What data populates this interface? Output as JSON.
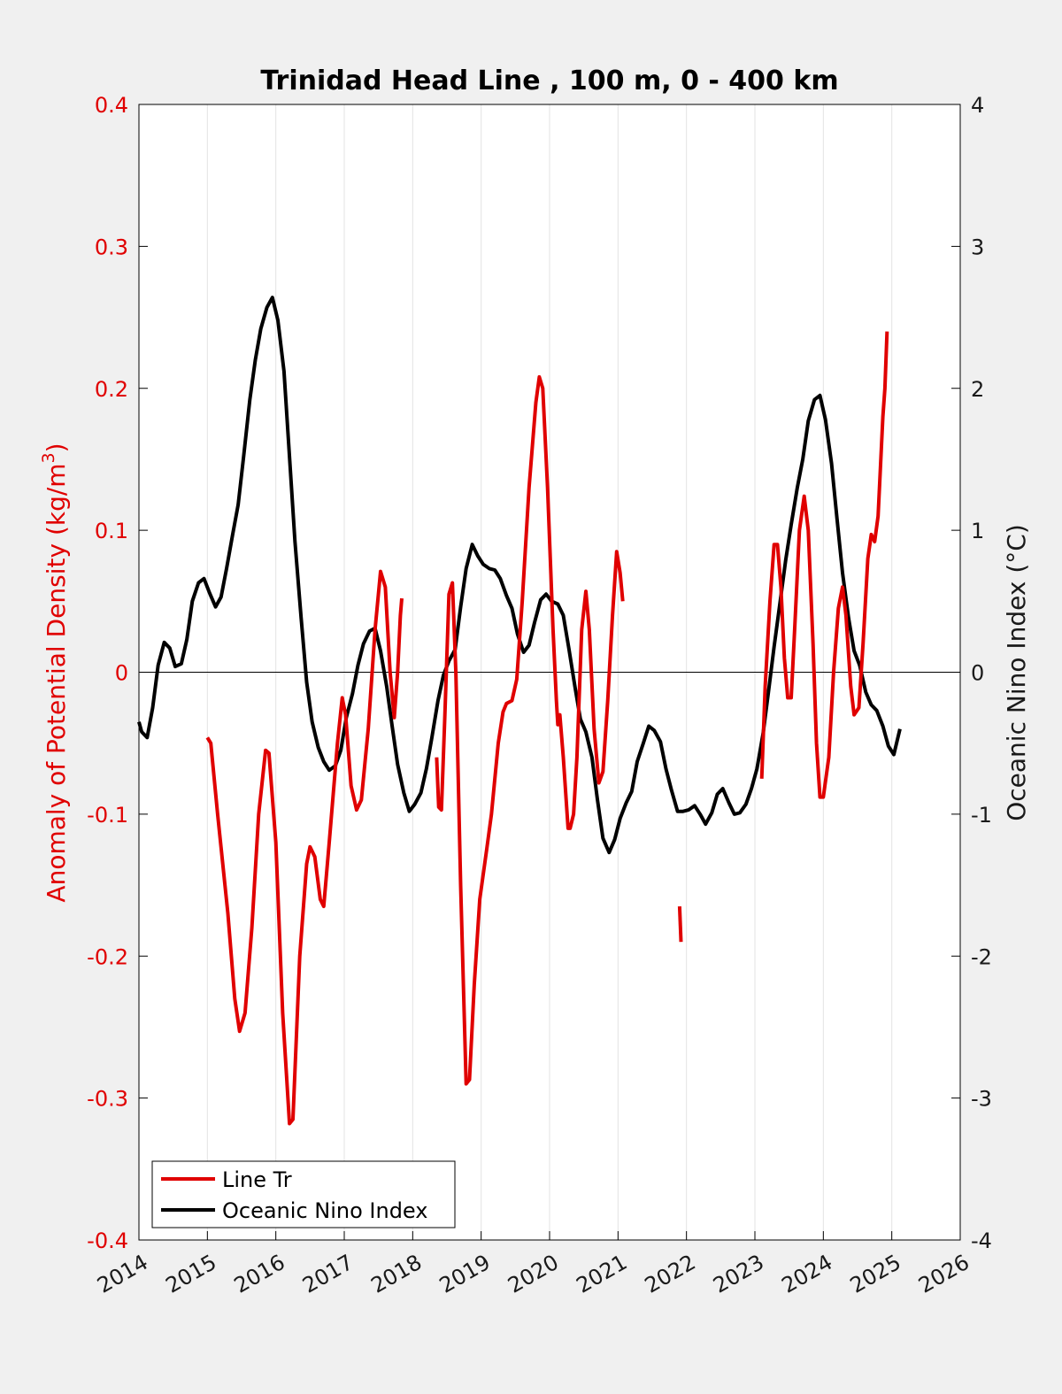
{
  "chart_data": {
    "type": "line",
    "title": "Trinidad Head Line , 100 m, 0 - 400 km",
    "ylabel_left": "Anomaly of Potential Density (kg/m",
    "ylabel_left_sup": "3",
    "ylabel_left_end": ")",
    "ylabel_right": "Oceanic Nino Index (°C)",
    "xlim": [
      2014,
      2026
    ],
    "ylim_left": [
      -0.4,
      0.4
    ],
    "ylim_right": [
      -4,
      4
    ],
    "x_ticks": [
      2014,
      2015,
      2016,
      2017,
      2018,
      2019,
      2020,
      2021,
      2022,
      2023,
      2024,
      2025,
      2026
    ],
    "y_ticks_left": [
      "-0.4",
      "-0.3",
      "-0.2",
      "-0.1",
      "0",
      "0.1",
      "0.2",
      "0.3",
      "0.4"
    ],
    "y_ticks_right": [
      "-4",
      "-3",
      "-2",
      "-1",
      "0",
      "1",
      "2",
      "3",
      "4"
    ],
    "grid": "vertical",
    "legend_position": "bottom-left",
    "colors": {
      "line_tr": "#e00000",
      "oni": "#000000"
    },
    "series": [
      {
        "name": "Line Tr",
        "axis": "left",
        "segments": [
          [
            [
              2015.0,
              -0.046
            ],
            [
              2015.05,
              -0.05
            ],
            [
              2015.15,
              -0.1
            ],
            [
              2015.3,
              -0.17
            ],
            [
              2015.4,
              -0.23
            ],
            [
              2015.47,
              -0.253
            ],
            [
              2015.55,
              -0.24
            ],
            [
              2015.65,
              -0.18
            ],
            [
              2015.75,
              -0.1
            ],
            [
              2015.85,
              -0.055
            ],
            [
              2015.9,
              -0.057
            ],
            [
              2016.0,
              -0.12
            ],
            [
              2016.1,
              -0.24
            ],
            [
              2016.2,
              -0.318
            ],
            [
              2016.25,
              -0.315
            ],
            [
              2016.35,
              -0.2
            ],
            [
              2016.45,
              -0.135
            ],
            [
              2016.5,
              -0.123
            ],
            [
              2016.57,
              -0.13
            ],
            [
              2016.65,
              -0.16
            ],
            [
              2016.7,
              -0.165
            ],
            [
              2016.78,
              -0.12
            ],
            [
              2016.9,
              -0.05
            ],
            [
              2016.97,
              -0.018
            ],
            [
              2017.02,
              -0.03
            ],
            [
              2017.1,
              -0.08
            ],
            [
              2017.18,
              -0.097
            ],
            [
              2017.25,
              -0.09
            ],
            [
              2017.35,
              -0.04
            ],
            [
              2017.45,
              0.03
            ],
            [
              2017.53,
              0.071
            ],
            [
              2017.6,
              0.06
            ],
            [
              2017.67,
              0.0
            ],
            [
              2017.73,
              -0.032
            ],
            [
              2017.78,
              0.0
            ],
            [
              2017.82,
              0.04
            ],
            [
              2017.84,
              0.052
            ]
          ],
          [
            [
              2018.35,
              -0.06
            ],
            [
              2018.38,
              -0.095
            ],
            [
              2018.42,
              -0.097
            ],
            [
              2018.47,
              -0.03
            ],
            [
              2018.53,
              0.055
            ],
            [
              2018.58,
              0.063
            ],
            [
              2018.63,
              0.0
            ],
            [
              2018.7,
              -0.15
            ],
            [
              2018.78,
              -0.29
            ],
            [
              2018.83,
              -0.287
            ],
            [
              2018.9,
              -0.22
            ],
            [
              2018.98,
              -0.16
            ],
            [
              2019.08,
              -0.125
            ],
            [
              2019.15,
              -0.1
            ],
            [
              2019.25,
              -0.05
            ],
            [
              2019.32,
              -0.028
            ],
            [
              2019.37,
              -0.022
            ],
            [
              2019.45,
              -0.02
            ],
            [
              2019.52,
              -0.005
            ],
            [
              2019.6,
              0.05
            ],
            [
              2019.7,
              0.13
            ],
            [
              2019.8,
              0.19
            ],
            [
              2019.85,
              0.208
            ],
            [
              2019.9,
              0.2
            ],
            [
              2019.97,
              0.13
            ],
            [
              2020.05,
              0.03
            ],
            [
              2020.1,
              -0.02
            ],
            [
              2020.12,
              -0.037
            ],
            [
              2020.15,
              -0.03
            ],
            [
              2020.2,
              -0.06
            ],
            [
              2020.27,
              -0.11
            ],
            [
              2020.3,
              -0.11
            ],
            [
              2020.35,
              -0.1
            ],
            [
              2020.4,
              -0.06
            ],
            [
              2020.47,
              0.03
            ],
            [
              2020.53,
              0.057
            ],
            [
              2020.58,
              0.03
            ],
            [
              2020.65,
              -0.04
            ],
            [
              2020.72,
              -0.078
            ],
            [
              2020.78,
              -0.07
            ],
            [
              2020.85,
              -0.02
            ],
            [
              2020.92,
              0.04
            ],
            [
              2020.98,
              0.085
            ],
            [
              2021.03,
              0.07
            ],
            [
              2021.07,
              0.05
            ]
          ],
          [
            [
              2021.9,
              -0.165
            ],
            [
              2021.92,
              -0.19
            ]
          ],
          [
            [
              2023.1,
              -0.075
            ],
            [
              2023.15,
              -0.01
            ],
            [
              2023.22,
              0.05
            ],
            [
              2023.28,
              0.09
            ],
            [
              2023.33,
              0.09
            ],
            [
              2023.38,
              0.06
            ],
            [
              2023.43,
              0.01
            ],
            [
              2023.48,
              -0.018
            ],
            [
              2023.53,
              -0.018
            ],
            [
              2023.58,
              0.03
            ],
            [
              2023.65,
              0.1
            ],
            [
              2023.72,
              0.124
            ],
            [
              2023.78,
              0.1
            ],
            [
              2023.85,
              0.02
            ],
            [
              2023.9,
              -0.05
            ],
            [
              2023.95,
              -0.088
            ],
            [
              2024.0,
              -0.088
            ],
            [
              2024.08,
              -0.06
            ],
            [
              2024.15,
              0.0
            ],
            [
              2024.22,
              0.045
            ],
            [
              2024.28,
              0.06
            ],
            [
              2024.33,
              0.04
            ],
            [
              2024.4,
              -0.01
            ],
            [
              2024.45,
              -0.03
            ],
            [
              2024.52,
              -0.025
            ],
            [
              2024.58,
              0.02
            ],
            [
              2024.65,
              0.08
            ],
            [
              2024.7,
              0.097
            ],
            [
              2024.75,
              0.092
            ],
            [
              2024.8,
              0.11
            ],
            [
              2024.87,
              0.18
            ],
            [
              2024.9,
              0.2
            ],
            [
              2024.93,
              0.24
            ]
          ]
        ]
      },
      {
        "name": "Oceanic Nino Index",
        "axis": "right",
        "segments": [
          [
            [
              2014.0,
              -0.35
            ],
            [
              2014.04,
              -0.42
            ],
            [
              2014.12,
              -0.46
            ],
            [
              2014.2,
              -0.25
            ],
            [
              2014.28,
              0.05
            ],
            [
              2014.37,
              0.21
            ],
            [
              2014.45,
              0.17
            ],
            [
              2014.53,
              0.04
            ],
            [
              2014.62,
              0.06
            ],
            [
              2014.7,
              0.23
            ],
            [
              2014.78,
              0.5
            ],
            [
              2014.87,
              0.63
            ],
            [
              2014.95,
              0.66
            ],
            [
              2015.03,
              0.56
            ],
            [
              2015.12,
              0.46
            ],
            [
              2015.2,
              0.53
            ],
            [
              2015.28,
              0.73
            ],
            [
              2015.37,
              0.97
            ],
            [
              2015.45,
              1.18
            ],
            [
              2015.53,
              1.52
            ],
            [
              2015.62,
              1.92
            ],
            [
              2015.7,
              2.2
            ],
            [
              2015.78,
              2.42
            ],
            [
              2015.87,
              2.57
            ],
            [
              2015.95,
              2.64
            ],
            [
              2016.03,
              2.48
            ],
            [
              2016.12,
              2.12
            ],
            [
              2016.2,
              1.52
            ],
            [
              2016.28,
              0.92
            ],
            [
              2016.37,
              0.38
            ],
            [
              2016.45,
              -0.07
            ],
            [
              2016.53,
              -0.35
            ],
            [
              2016.62,
              -0.53
            ],
            [
              2016.7,
              -0.63
            ],
            [
              2016.78,
              -0.69
            ],
            [
              2016.87,
              -0.66
            ],
            [
              2016.95,
              -0.55
            ],
            [
              2017.03,
              -0.32
            ],
            [
              2017.12,
              -0.15
            ],
            [
              2017.2,
              0.05
            ],
            [
              2017.28,
              0.2
            ],
            [
              2017.37,
              0.29
            ],
            [
              2017.45,
              0.31
            ],
            [
              2017.53,
              0.15
            ],
            [
              2017.62,
              -0.1
            ],
            [
              2017.7,
              -0.38
            ],
            [
              2017.78,
              -0.65
            ],
            [
              2017.87,
              -0.85
            ],
            [
              2017.95,
              -0.98
            ],
            [
              2018.03,
              -0.93
            ],
            [
              2018.12,
              -0.85
            ],
            [
              2018.2,
              -0.68
            ],
            [
              2018.28,
              -0.46
            ],
            [
              2018.37,
              -0.2
            ],
            [
              2018.45,
              -0.02
            ],
            [
              2018.53,
              0.08
            ],
            [
              2018.62,
              0.16
            ],
            [
              2018.7,
              0.46
            ],
            [
              2018.78,
              0.73
            ],
            [
              2018.87,
              0.9
            ],
            [
              2018.95,
              0.82
            ],
            [
              2019.03,
              0.76
            ],
            [
              2019.12,
              0.73
            ],
            [
              2019.2,
              0.72
            ],
            [
              2019.28,
              0.66
            ],
            [
              2019.37,
              0.54
            ],
            [
              2019.45,
              0.45
            ],
            [
              2019.53,
              0.27
            ],
            [
              2019.62,
              0.14
            ],
            [
              2019.7,
              0.19
            ],
            [
              2019.78,
              0.35
            ],
            [
              2019.87,
              0.51
            ],
            [
              2019.95,
              0.55
            ],
            [
              2020.03,
              0.5
            ],
            [
              2020.12,
              0.48
            ],
            [
              2020.2,
              0.4
            ],
            [
              2020.28,
              0.17
            ],
            [
              2020.37,
              -0.1
            ],
            [
              2020.45,
              -0.33
            ],
            [
              2020.53,
              -0.42
            ],
            [
              2020.62,
              -0.6
            ],
            [
              2020.7,
              -0.9
            ],
            [
              2020.78,
              -1.17
            ],
            [
              2020.87,
              -1.27
            ],
            [
              2020.95,
              -1.18
            ],
            [
              2021.03,
              -1.03
            ],
            [
              2021.12,
              -0.92
            ],
            [
              2021.2,
              -0.84
            ],
            [
              2021.28,
              -0.63
            ],
            [
              2021.37,
              -0.5
            ],
            [
              2021.45,
              -0.38
            ],
            [
              2021.53,
              -0.41
            ],
            [
              2021.62,
              -0.49
            ],
            [
              2021.7,
              -0.68
            ],
            [
              2021.78,
              -0.83
            ],
            [
              2021.87,
              -0.98
            ],
            [
              2021.95,
              -0.98
            ],
            [
              2022.03,
              -0.97
            ],
            [
              2022.12,
              -0.94
            ],
            [
              2022.2,
              -1.0
            ],
            [
              2022.28,
              -1.07
            ],
            [
              2022.37,
              -0.99
            ],
            [
              2022.45,
              -0.86
            ],
            [
              2022.53,
              -0.82
            ],
            [
              2022.62,
              -0.92
            ],
            [
              2022.7,
              -1.0
            ],
            [
              2022.78,
              -0.99
            ],
            [
              2022.87,
              -0.93
            ],
            [
              2022.95,
              -0.82
            ],
            [
              2023.03,
              -0.68
            ],
            [
              2023.12,
              -0.43
            ],
            [
              2023.2,
              -0.13
            ],
            [
              2023.28,
              0.18
            ],
            [
              2023.37,
              0.5
            ],
            [
              2023.45,
              0.79
            ],
            [
              2023.53,
              1.04
            ],
            [
              2023.62,
              1.3
            ],
            [
              2023.7,
              1.5
            ],
            [
              2023.78,
              1.77
            ],
            [
              2023.87,
              1.92
            ],
            [
              2023.95,
              1.95
            ],
            [
              2024.03,
              1.78
            ],
            [
              2024.12,
              1.47
            ],
            [
              2024.2,
              1.08
            ],
            [
              2024.28,
              0.7
            ],
            [
              2024.37,
              0.38
            ],
            [
              2024.45,
              0.15
            ],
            [
              2024.53,
              0.05
            ],
            [
              2024.62,
              -0.14
            ],
            [
              2024.7,
              -0.23
            ],
            [
              2024.78,
              -0.27
            ],
            [
              2024.87,
              -0.38
            ],
            [
              2024.95,
              -0.52
            ],
            [
              2025.03,
              -0.58
            ],
            [
              2025.12,
              -0.4
            ]
          ]
        ]
      }
    ]
  },
  "legend": {
    "items": [
      {
        "label": "Line Tr"
      },
      {
        "label": "Oceanic Nino Index"
      }
    ]
  }
}
